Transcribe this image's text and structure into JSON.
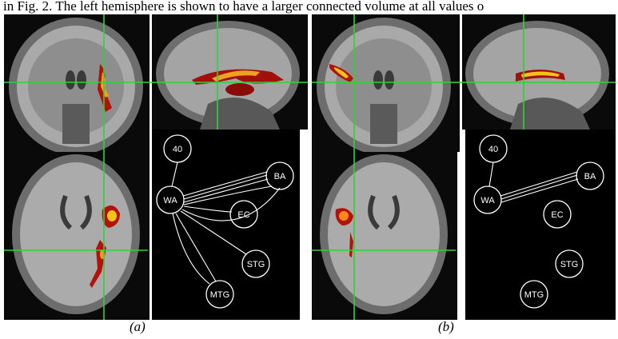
{
  "header_text": "in Fig. 2. The left hemisphere is shown to have a larger connected volume at all values o",
  "panels": [
    {
      "caption": "(a)",
      "nodes": [
        "40",
        "WA",
        "BA",
        "EC",
        "STG",
        "MTG"
      ]
    },
    {
      "caption": "(b)",
      "nodes": [
        "40",
        "WA",
        "BA",
        "EC",
        "STG",
        "MTG"
      ]
    }
  ]
}
